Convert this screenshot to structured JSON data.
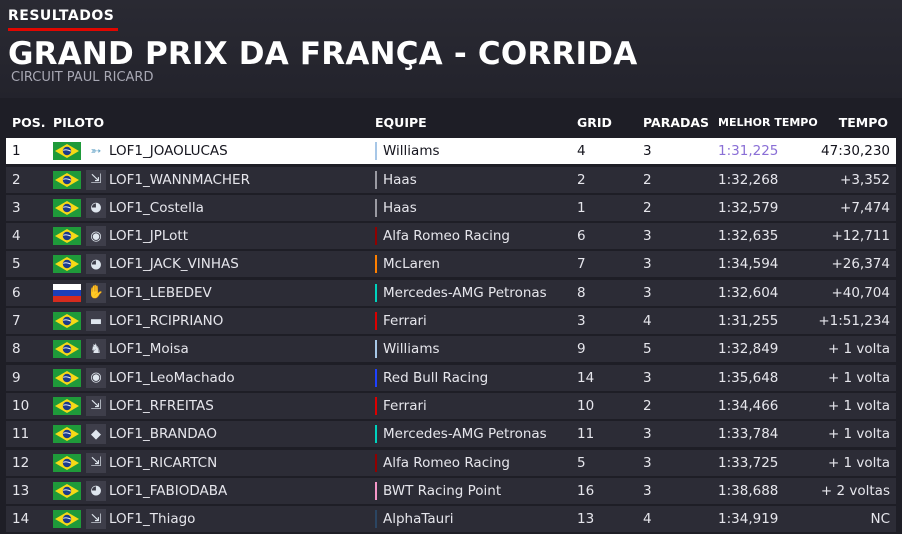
{
  "header": {
    "section_tag": "RESULTADOS",
    "title": "GRAND PRIX DA FRANÇA - CORRIDA",
    "subtitle": "CIRCUIT PAUL RICARD"
  },
  "columns": {
    "pos": "POS.",
    "piloto": "PILOTO",
    "equipe": "EQUIPE",
    "grid": "GRID",
    "paradas": "PARADAS",
    "melhor_tempo": "MELHOR TEMPO",
    "tempo": "TEMPO"
  },
  "colors": {
    "accent": "#e10600",
    "fastest_lap": "#8a6fd6",
    "Williams": "#a7c7e7",
    "Haas": "#9a9aa2",
    "Alfa Romeo Racing": "#900000",
    "McLaren": "#ff8000",
    "Mercedes-AMG Petronas": "#00d2be",
    "Ferrari": "#dc0000",
    "Red Bull Racing": "#1e41ff",
    "BWT Racing Point": "#f596c8",
    "AlphaTauri": "#2b4562"
  },
  "rows": [
    {
      "pos": "1",
      "flag": "brazil",
      "avatar_icon": "arrow-icon",
      "driver": "LOF1_JOAOLUCAS",
      "team": "Williams",
      "grid": "4",
      "stops": "3",
      "best": "1:31,225",
      "time": "47:30,230",
      "highlight": true,
      "fastest": true
    },
    {
      "pos": "2",
      "flag": "brazil",
      "avatar_icon": "arrows-icon",
      "driver": "LOF1_WANNMACHER",
      "team": "Haas",
      "grid": "2",
      "stops": "2",
      "best": "1:32,268",
      "time": "+3,352"
    },
    {
      "pos": "3",
      "flag": "brazil",
      "avatar_icon": "helmet-icon",
      "driver": "LOF1_Costella",
      "team": "Haas",
      "grid": "1",
      "stops": "2",
      "best": "1:32,579",
      "time": "+7,474"
    },
    {
      "pos": "4",
      "flag": "brazil",
      "avatar_icon": "circle-logo-icon",
      "driver": "LOF1_JPLott",
      "team": "Alfa Romeo Racing",
      "grid": "6",
      "stops": "3",
      "best": "1:32,635",
      "time": "+12,711"
    },
    {
      "pos": "5",
      "flag": "brazil",
      "avatar_icon": "helmet-icon",
      "driver": "LOF1_JACK_VINHAS",
      "team": "McLaren",
      "grid": "7",
      "stops": "3",
      "best": "1:34,594",
      "time": "+26,374"
    },
    {
      "pos": "6",
      "flag": "russia",
      "avatar_icon": "hand-icon",
      "driver": "LOF1_LEBEDEV",
      "team": "Mercedes-AMG Petronas",
      "grid": "8",
      "stops": "3",
      "best": "1:32,604",
      "time": "+40,704"
    },
    {
      "pos": "7",
      "flag": "brazil",
      "avatar_icon": "car-icon",
      "driver": "LOF1_RCIPRIANO",
      "team": "Ferrari",
      "grid": "3",
      "stops": "4",
      "best": "1:31,255",
      "time": "+1:51,234"
    },
    {
      "pos": "8",
      "flag": "brazil",
      "avatar_icon": "horse-icon",
      "driver": "LOF1_Moisa",
      "team": "Williams",
      "grid": "9",
      "stops": "5",
      "best": "1:32,849",
      "time": "+ 1 volta"
    },
    {
      "pos": "9",
      "flag": "brazil",
      "avatar_icon": "circle-logo-icon",
      "driver": "LOF1_LeoMachado",
      "team": "Red Bull Racing",
      "grid": "14",
      "stops": "3",
      "best": "1:35,648",
      "time": "+ 1 volta"
    },
    {
      "pos": "10",
      "flag": "brazil",
      "avatar_icon": "arrows-icon",
      "driver": "LOF1_RFREITAS",
      "team": "Ferrari",
      "grid": "10",
      "stops": "2",
      "best": "1:34,466",
      "time": "+ 1 volta"
    },
    {
      "pos": "11",
      "flag": "brazil",
      "avatar_icon": "logo-icon",
      "driver": "LOF1_BRANDAO",
      "team": "Mercedes-AMG Petronas",
      "grid": "11",
      "stops": "3",
      "best": "1:33,784",
      "time": "+ 1 volta"
    },
    {
      "pos": "12",
      "flag": "brazil",
      "avatar_icon": "arrows-icon",
      "driver": "LOF1_RICARTCN",
      "team": "Alfa Romeo Racing",
      "grid": "5",
      "stops": "3",
      "best": "1:33,725",
      "time": "+ 1 volta"
    },
    {
      "pos": "13",
      "flag": "brazil",
      "avatar_icon": "helmet-icon",
      "driver": "LOF1_FABIODABA",
      "team": "BWT Racing Point",
      "grid": "16",
      "stops": "3",
      "best": "1:38,688",
      "time": "+ 2 voltas"
    },
    {
      "pos": "14",
      "flag": "brazil",
      "avatar_icon": "arrows-icon",
      "driver": "LOF1_Thiago",
      "team": "AlphaTauri",
      "grid": "13",
      "stops": "4",
      "best": "1:34,919",
      "time": "NC"
    }
  ]
}
